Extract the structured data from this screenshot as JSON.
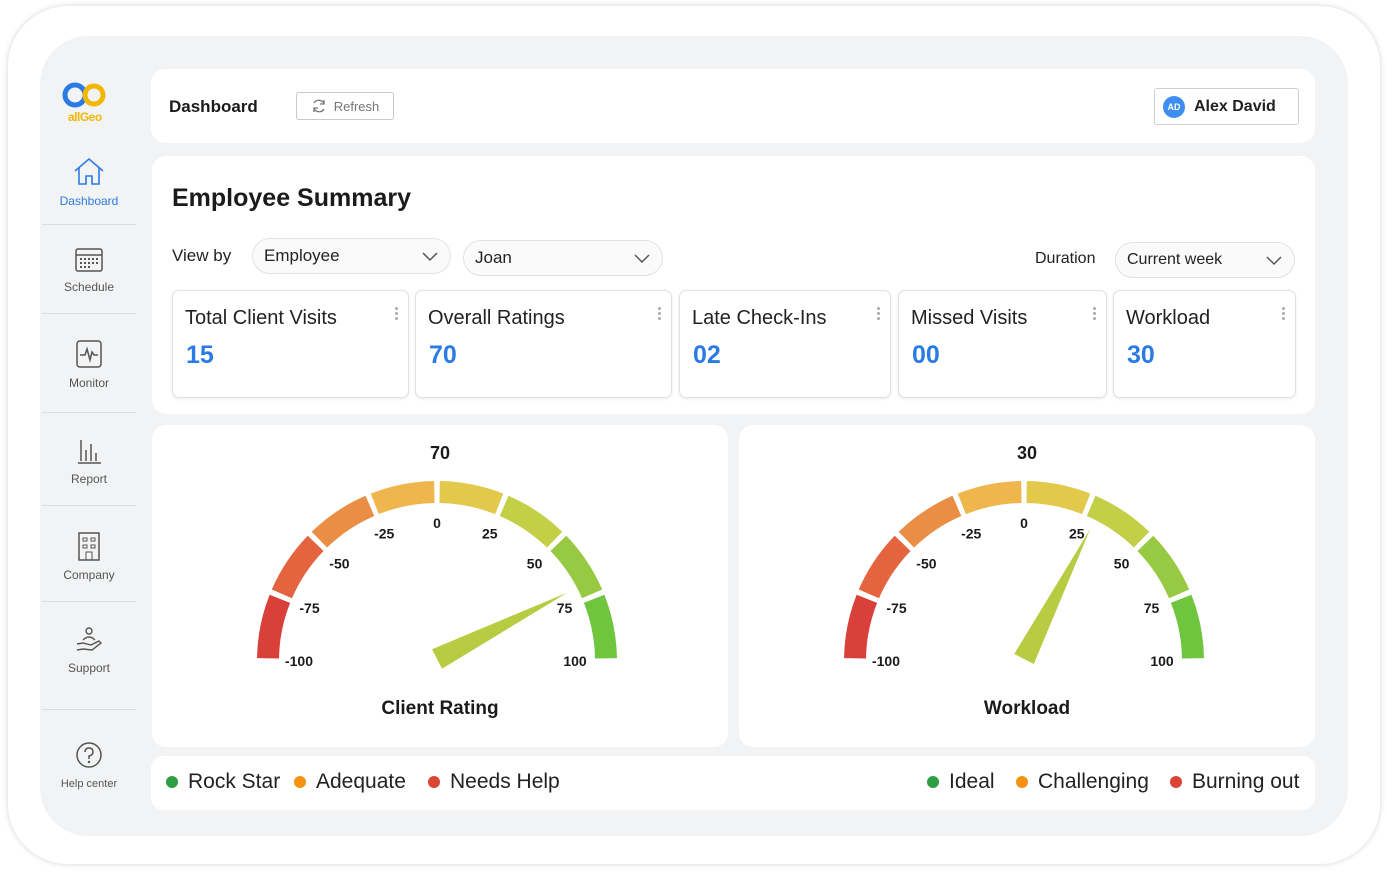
{
  "app": {
    "brand": "allGeo",
    "colors": {
      "accent": "#2b7be4",
      "green": "#2e9e44",
      "orange": "#f5920f",
      "red": "#dc4436"
    }
  },
  "sidebar": {
    "items": [
      {
        "label": "Dashboard",
        "icon": "home-icon",
        "active": true
      },
      {
        "label": "Schedule",
        "icon": "calendar-icon",
        "active": false
      },
      {
        "label": "Monitor",
        "icon": "monitor-pulse-icon",
        "active": false
      },
      {
        "label": "Report",
        "icon": "bar-chart-icon",
        "active": false
      },
      {
        "label": "Company",
        "icon": "building-icon",
        "active": false
      },
      {
        "label": "Support",
        "icon": "helping-hand-icon",
        "active": false
      },
      {
        "label": "Help center",
        "icon": "question-circle-icon",
        "active": false
      }
    ]
  },
  "header": {
    "title": "Dashboard",
    "refresh_label": "Refresh",
    "user": {
      "initials": "AD",
      "name": "Alex David"
    }
  },
  "summary": {
    "heading": "Employee Summary",
    "view_by_label": "View by",
    "view_by_value": "Employee",
    "employee_value": "Joan",
    "duration_label": "Duration",
    "duration_value": "Current week",
    "cards": [
      {
        "label": "Total Client Visits",
        "value": "15"
      },
      {
        "label": "Overall Ratings",
        "value": "70"
      },
      {
        "label": "Late Check-Ins",
        "value": "02"
      },
      {
        "label": "Missed Visits",
        "value": "00"
      },
      {
        "label": "Workload",
        "value": "30"
      }
    ]
  },
  "gauges": [
    {
      "value": 70,
      "value_text": "70",
      "title": "Client Rating",
      "ticks": [
        "-100",
        "-75",
        "-50",
        "-25",
        "0",
        "25",
        "50",
        "75",
        "100"
      ]
    },
    {
      "value": 30,
      "value_text": "30",
      "title": "Workload",
      "ticks": [
        "-100",
        "-75",
        "-50",
        "-25",
        "0",
        "25",
        "50",
        "75",
        "100"
      ]
    }
  ],
  "legend": {
    "left": [
      {
        "label": "Rock Star",
        "color": "#2e9e44"
      },
      {
        "label": "Adequate",
        "color": "#f5920f"
      },
      {
        "label": "Needs Help",
        "color": "#dc4436"
      }
    ],
    "right": [
      {
        "label": "Ideal",
        "color": "#2e9e44"
      },
      {
        "label": "Challenging",
        "color": "#f5920f"
      },
      {
        "label": "Burning out",
        "color": "#dc4436"
      }
    ]
  }
}
